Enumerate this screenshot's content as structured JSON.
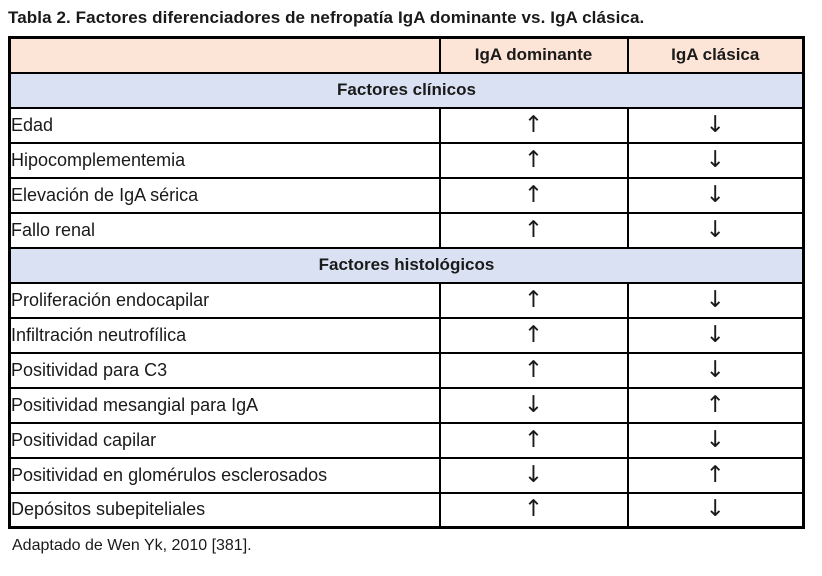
{
  "title": "Tabla 2. Factores diferenciadores de nefropatía IgA dominante vs. IgA clásica.",
  "colors": {
    "header_bg": "#FCE4D6",
    "section_bg": "#D9E1F2",
    "border_color": "#000000"
  },
  "icons": {
    "up_arrow": "↑",
    "down_arrow": "↓"
  },
  "table": {
    "columns": [
      "",
      "IgA dominante",
      "IgA clásica"
    ],
    "sections": [
      {
        "title": "Factores clínicos",
        "rows": [
          {
            "label": "Edad",
            "iga_dominante": "↑",
            "iga_clasica": "↓"
          },
          {
            "label": "Hipocomplementemia",
            "iga_dominante": "↑",
            "iga_clasica": "↓"
          },
          {
            "label": "Elevación de IgA sérica",
            "iga_dominante": "↑",
            "iga_clasica": "↓"
          },
          {
            "label": "Fallo renal",
            "iga_dominante": "↑",
            "iga_clasica": "↓"
          }
        ]
      },
      {
        "title": "Factores histológicos",
        "rows": [
          {
            "label": "Proliferación endocapilar",
            "iga_dominante": "↑",
            "iga_clasica": "↓"
          },
          {
            "label": "Infiltración neutrofílica",
            "iga_dominante": "↑",
            "iga_clasica": "↓"
          },
          {
            "label": "Positividad para C3",
            "iga_dominante": "↑",
            "iga_clasica": "↓"
          },
          {
            "label": "Positividad mesangial para IgA",
            "iga_dominante": "↓",
            "iga_clasica": "↑"
          },
          {
            "label": "Positividad capilar",
            "iga_dominante": "↑",
            "iga_clasica": "↓"
          },
          {
            "label": "Positividad en glomérulos esclerosados",
            "iga_dominante": "↓",
            "iga_clasica": "↑"
          },
          {
            "label": "Depósitos subepiteliales",
            "iga_dominante": "↑",
            "iga_clasica": "↓"
          }
        ]
      }
    ]
  },
  "footnote": "Adaptado de Wen Yk, 2010 [381]."
}
